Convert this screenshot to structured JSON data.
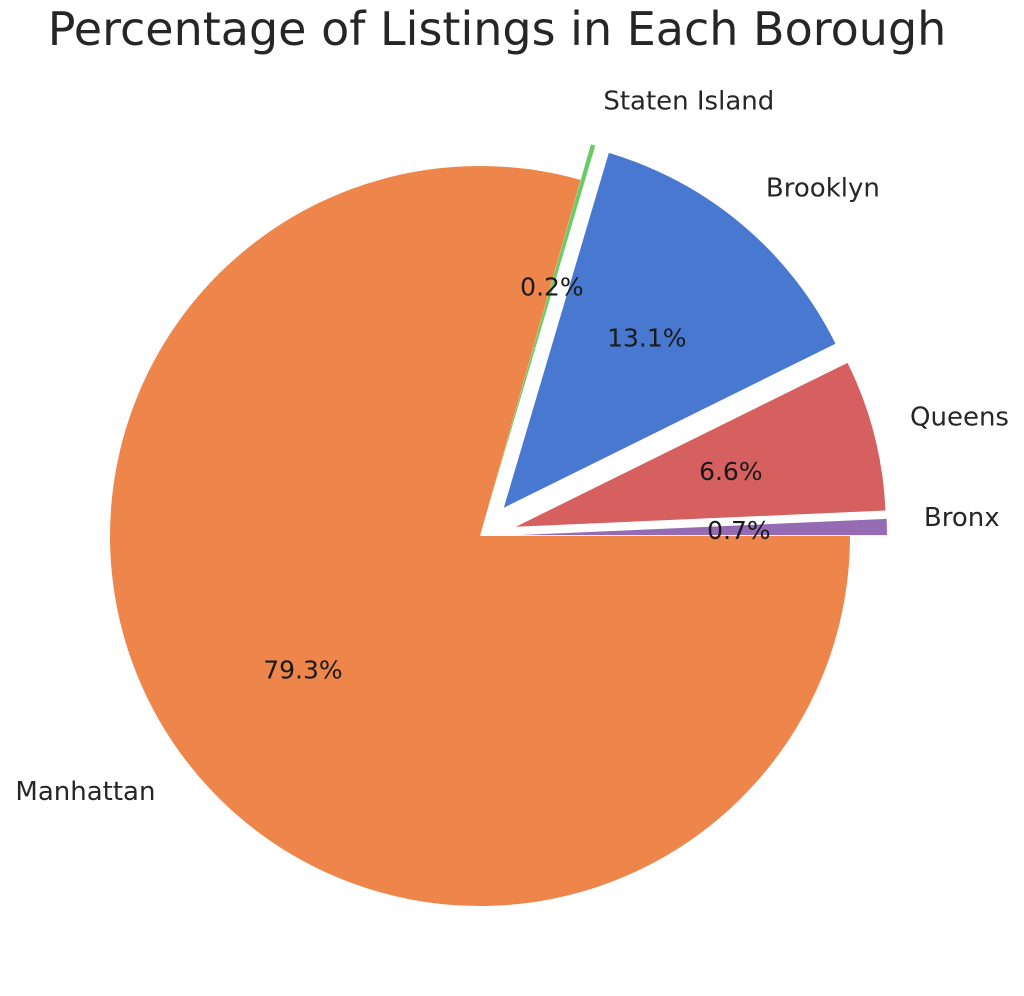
{
  "chart_data": {
    "type": "pie",
    "title": "Percentage of Listings in Each Borough",
    "categories": [
      "Bronx",
      "Queens",
      "Brooklyn",
      "Staten Island",
      "Manhattan"
    ],
    "values": [
      0.7,
      6.6,
      13.1,
      0.2,
      79.3
    ],
    "value_labels": [
      "0.7%",
      "6.6%",
      "13.1%",
      "0.2%",
      "79.3%"
    ],
    "colors": [
      "#956cb4",
      "#d65f5f",
      "#4878d0",
      "#6acc64",
      "#ee854a"
    ],
    "exploded": [
      true,
      true,
      true,
      true,
      false
    ],
    "start_angle": 0,
    "direction": "counterclockwise",
    "legend": "none"
  }
}
